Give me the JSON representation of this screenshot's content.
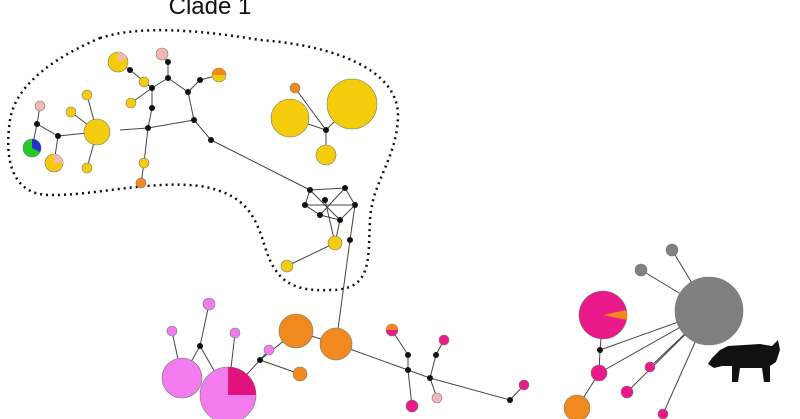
{
  "clade_label": "Clade 1"
}
